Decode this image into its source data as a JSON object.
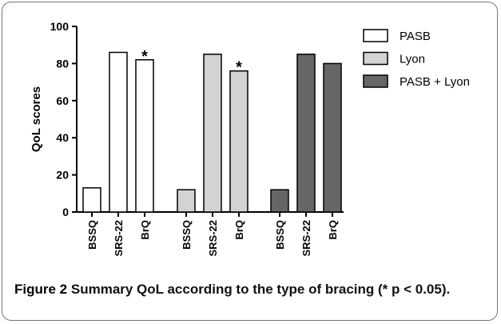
{
  "chart_data": {
    "type": "bar",
    "ylabel": "QoL scores",
    "categories": [
      "BSSQ",
      "SRS-22",
      "BrQ"
    ],
    "series": [
      {
        "name": "PASB",
        "color": "#ffffff",
        "values": [
          13,
          86,
          82
        ],
        "annotations": [
          null,
          null,
          "*"
        ]
      },
      {
        "name": "Lyon",
        "color": "#d3d3d3",
        "values": [
          12,
          85,
          76
        ],
        "annotations": [
          null,
          null,
          "*"
        ]
      },
      {
        "name": "PASB + Lyon",
        "color": "#666666",
        "values": [
          12,
          85,
          80
        ],
        "annotations": [
          null,
          null,
          null
        ]
      }
    ],
    "ylim": [
      0,
      100
    ],
    "yticks": [
      0,
      20,
      40,
      60,
      80,
      100
    ],
    "legend": "right"
  },
  "caption": {
    "label": "Figure 2",
    "text": "Summary QoL according to the type of bracing (* p < 0.05)."
  }
}
